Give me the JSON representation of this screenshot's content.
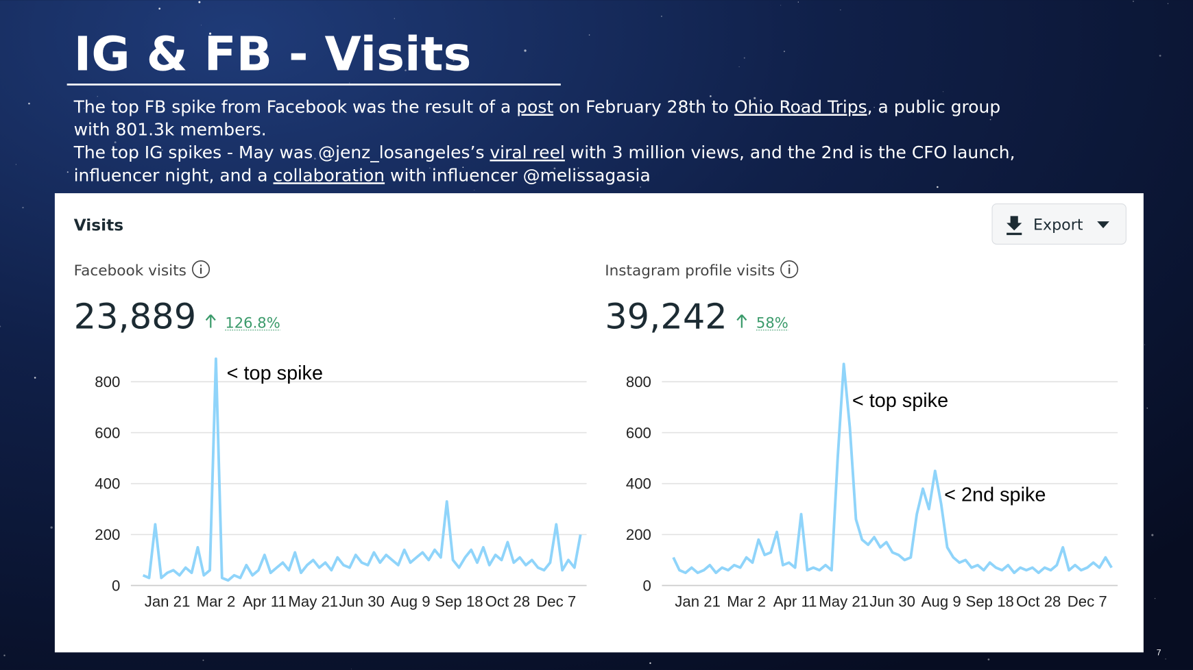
{
  "title": "IG & FB - Visits",
  "description": [
    [
      {
        "text": "The top FB spike from Facebook was the result of a "
      },
      {
        "text": "post",
        "underline": true
      },
      {
        "text": " on February 28th  to "
      },
      {
        "text": "Ohio Road Trips",
        "underline": true
      },
      {
        "text": ",  a public group"
      }
    ],
    [
      {
        "text": "with 801.3k members."
      }
    ],
    [
      {
        "text": "The top IG spikes - May was @jenz_losangeles’s "
      },
      {
        "text": "viral reel",
        "underline": true
      },
      {
        "text": " with 3 million views, and the 2nd is the CFO launch,"
      }
    ],
    [
      {
        "text": "influencer night, and a "
      },
      {
        "text": "collaboration",
        "underline": true
      },
      {
        "text": " with influencer @melissagasia"
      }
    ]
  ],
  "card": {
    "title": "Visits",
    "button": "Export"
  },
  "page_number": "7",
  "chart_data": [
    {
      "type": "line",
      "title": "Facebook visits",
      "total": "23,889",
      "change": "126.8%",
      "color": "#8fd4fa",
      "categories": [
        null,
        null,
        null,
        null,
        "Jan 21",
        null,
        null,
        null,
        null,
        null,
        null,
        null,
        "Mar 2",
        null,
        null,
        null,
        null,
        null,
        null,
        null,
        "Apr 11",
        null,
        null,
        null,
        null,
        null,
        null,
        null,
        "May 21",
        null,
        null,
        null,
        null,
        null,
        null,
        null,
        "Jun 30",
        null,
        null,
        null,
        null,
        null,
        null,
        null,
        "Aug 9",
        null,
        null,
        null,
        null,
        null,
        null,
        null,
        "Sep 18",
        null,
        null,
        null,
        null,
        null,
        null,
        null,
        "Oct 28",
        null,
        null,
        null,
        null,
        null,
        null,
        null,
        "Dec 7",
        null,
        null,
        null,
        null
      ],
      "values": [
        40,
        30,
        240,
        30,
        50,
        60,
        40,
        70,
        50,
        150,
        40,
        60,
        890,
        30,
        20,
        40,
        30,
        80,
        40,
        60,
        120,
        50,
        70,
        90,
        60,
        130,
        50,
        80,
        100,
        70,
        90,
        60,
        110,
        80,
        70,
        120,
        90,
        80,
        130,
        90,
        120,
        100,
        80,
        140,
        90,
        110,
        130,
        100,
        140,
        110,
        330,
        100,
        70,
        110,
        140,
        90,
        150,
        80,
        120,
        100,
        170,
        90,
        110,
        80,
        100,
        70,
        60,
        90,
        240,
        60,
        100,
        70,
        200
      ],
      "ylim": [
        0,
        800
      ],
      "yticks": [
        0,
        200,
        400,
        600,
        800
      ],
      "grid": true,
      "annotations": [
        {
          "text": "< top spike"
        }
      ]
    },
    {
      "type": "line",
      "title": "Instagram profile visits",
      "total": "39,242",
      "change": "58%",
      "color": "#8fd4fa",
      "categories": [
        null,
        null,
        null,
        null,
        "Jan 21",
        null,
        null,
        null,
        null,
        null,
        null,
        null,
        "Mar 2",
        null,
        null,
        null,
        null,
        null,
        null,
        null,
        "Apr 11",
        null,
        null,
        null,
        null,
        null,
        null,
        null,
        "May 21",
        null,
        null,
        null,
        null,
        null,
        null,
        null,
        "Jun 30",
        null,
        null,
        null,
        null,
        null,
        null,
        null,
        "Aug 9",
        null,
        null,
        null,
        null,
        null,
        null,
        null,
        "Sep 18",
        null,
        null,
        null,
        null,
        null,
        null,
        null,
        "Oct 28",
        null,
        null,
        null,
        null,
        null,
        null,
        null,
        "Dec 7",
        null,
        null,
        null,
        null
      ],
      "values": [
        110,
        60,
        50,
        70,
        50,
        60,
        80,
        50,
        70,
        60,
        80,
        70,
        110,
        90,
        180,
        120,
        130,
        210,
        80,
        90,
        70,
        280,
        60,
        70,
        60,
        80,
        60,
        500,
        870,
        620,
        260,
        180,
        160,
        190,
        150,
        170,
        130,
        120,
        100,
        110,
        280,
        380,
        300,
        450,
        320,
        150,
        110,
        90,
        100,
        70,
        80,
        60,
        90,
        70,
        60,
        80,
        50,
        70,
        60,
        70,
        50,
        70,
        60,
        80,
        150,
        60,
        80,
        60,
        70,
        90,
        70,
        110,
        70
      ],
      "ylim": [
        0,
        800
      ],
      "yticks": [
        0,
        200,
        400,
        600,
        800
      ],
      "grid": true,
      "annotations": [
        {
          "text": "< top spike"
        },
        {
          "text": "< 2nd spike"
        }
      ]
    }
  ]
}
